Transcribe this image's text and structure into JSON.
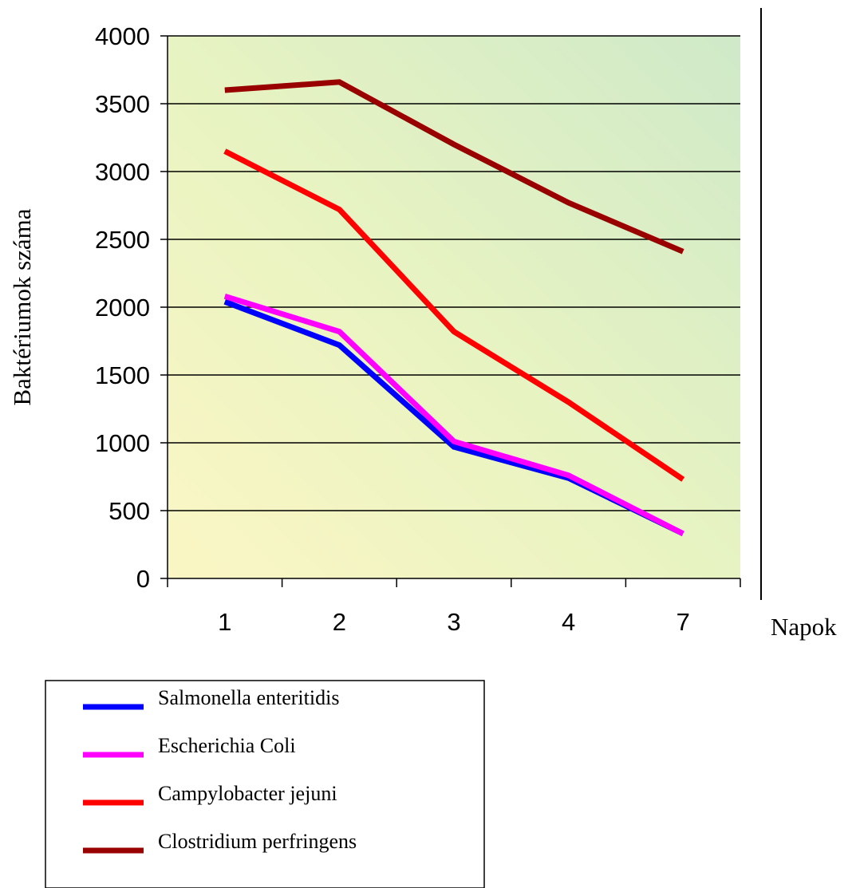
{
  "chart_data": {
    "type": "line",
    "title": "",
    "xlabel": "Napok",
    "ylabel": "Baktériumok száma",
    "categories": [
      "1",
      "2",
      "3",
      "4",
      "7"
    ],
    "ylim": [
      0,
      4000
    ],
    "yticks": [
      "0",
      "500",
      "1000",
      "1500",
      "2000",
      "2500",
      "3000",
      "3500",
      "4000"
    ],
    "grid": true,
    "legend_position": "bottom-left",
    "series": [
      {
        "name": "Salmonella enteritidis",
        "color": "#0000ff",
        "values": [
          2040,
          1720,
          970,
          740,
          330
        ]
      },
      {
        "name": "Escherichia Coli",
        "color": "#ff00ff",
        "values": [
          2080,
          1820,
          1010,
          760,
          330
        ]
      },
      {
        "name": "Campylobacter jejuni",
        "color": "#ff0000",
        "values": [
          3150,
          2720,
          1820,
          1300,
          730
        ]
      },
      {
        "name": "Clostridium perfringens",
        "color": "#990000",
        "values": [
          3600,
          3660,
          3200,
          2770,
          2410
        ]
      }
    ]
  }
}
